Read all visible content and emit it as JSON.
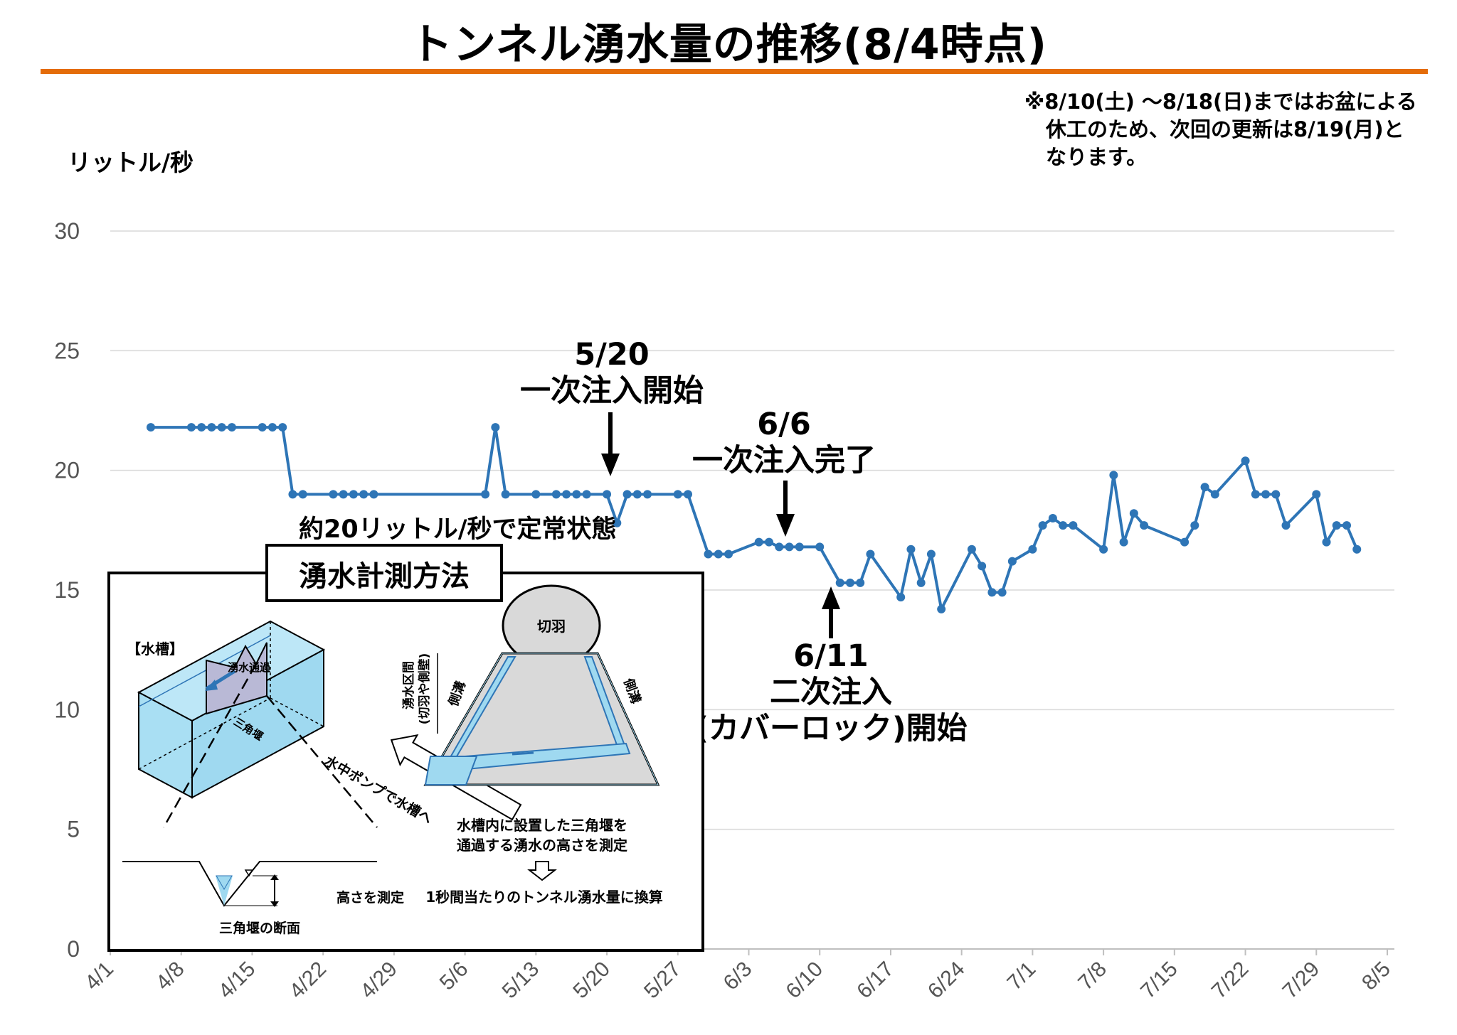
{
  "title": "トンネル湧水量の推移(8/4時点)",
  "note": [
    "※8/10(土) ～8/18(日)まではお盆による",
    "休工のため、次回の更新は8/19(月)と",
    "なります。"
  ],
  "annotations": {
    "a520_date": "5/20",
    "a520_text": "一次注入開始",
    "a66_date": "6/6",
    "a66_text": "一次注入完了",
    "a611_date": "6/11",
    "a611_text1": "二次注入",
    "a611_text2": "(カバーロック)開始",
    "steady": "約20リットル/秒で定常状態"
  },
  "inset": {
    "title": "湧水計測方法",
    "tank_label": "【水槽】",
    "flow_label": "湧水通過",
    "weir_label": "三角堰",
    "face_label": "切羽",
    "section_label1": "湧水区間",
    "section_label2": "(切羽や側壁)",
    "ditch_left": "側溝",
    "ditch_right": "側溝",
    "pump_label": "水中ポンプで水槽へ",
    "desc1": "水槽内に設置した三角堰を",
    "desc2": "通過する湧水の高さを測定",
    "desc3": "1秒間当たりのトンネル湧水量に換算",
    "measure_label": "高さを測定",
    "cross_label": "三角堰の断面"
  },
  "chart_data": {
    "type": "line",
    "title": "トンネル湧水量の推移(8/4時点)",
    "xlabel": "",
    "ylabel": "リットル/秒",
    "ylim": [
      0,
      30
    ],
    "yticks": [
      0,
      5,
      10,
      15,
      20,
      25,
      30
    ],
    "xticks": [
      "4/1",
      "4/8",
      "4/15",
      "4/22",
      "4/29",
      "5/6",
      "5/13",
      "5/20",
      "5/27",
      "6/3",
      "6/10",
      "6/17",
      "6/24",
      "7/1",
      "7/8",
      "7/15",
      "7/22",
      "7/29",
      "8/5"
    ],
    "xrange": [
      "4/1",
      "8/5"
    ],
    "grid": true,
    "color": "#2E75B6",
    "series": [
      {
        "x": [
          "4/5",
          "4/9",
          "4/10",
          "4/11",
          "4/12",
          "4/13",
          "4/16",
          "4/17",
          "4/18",
          "4/19",
          "4/20",
          "4/23",
          "4/24",
          "4/25",
          "4/26",
          "4/27",
          "5/8",
          "5/9",
          "5/10",
          "5/13",
          "5/15",
          "5/16",
          "5/17",
          "5/18",
          "5/20",
          "5/21",
          "5/22",
          "5/23",
          "5/24",
          "5/27",
          "5/28",
          "5/30",
          "5/31",
          "6/1",
          "6/4",
          "6/5",
          "6/6",
          "6/7",
          "6/8",
          "6/10",
          "6/12",
          "6/13",
          "6/14",
          "6/15",
          "6/18",
          "6/19",
          "6/20",
          "6/21",
          "6/22",
          "6/25",
          "6/26",
          "6/27",
          "6/28",
          "6/29",
          "7/1",
          "7/2",
          "7/3",
          "7/4",
          "7/5",
          "7/8",
          "7/9",
          "7/10",
          "7/11",
          "7/12",
          "7/16",
          "7/17",
          "7/18",
          "7/19",
          "7/22",
          "7/23",
          "7/24",
          "7/25",
          "7/26",
          "7/29",
          "7/30",
          "7/31",
          "8/1",
          "8/2"
        ],
        "values": [
          21.8,
          21.8,
          21.8,
          21.8,
          21.8,
          21.8,
          21.8,
          21.8,
          21.8,
          19,
          19,
          19,
          19,
          19,
          19,
          19,
          19,
          21.8,
          19,
          19,
          19,
          19,
          19,
          19,
          19,
          17.8,
          19,
          19,
          19,
          19,
          19,
          16.5,
          16.5,
          16.5,
          17,
          17,
          16.8,
          16.8,
          16.8,
          16.8,
          15.3,
          15.3,
          15.3,
          16.5,
          14.7,
          16.7,
          15.3,
          16.5,
          14.2,
          16.7,
          16,
          14.9,
          14.9,
          16.2,
          16.7,
          17.7,
          18,
          17.7,
          17.7,
          16.7,
          19.8,
          17,
          18.2,
          17.7,
          17,
          17.7,
          19.3,
          19,
          20.4,
          19,
          19,
          19,
          17.7,
          19,
          17,
          17.7,
          17.7,
          16.7
        ]
      }
    ]
  }
}
